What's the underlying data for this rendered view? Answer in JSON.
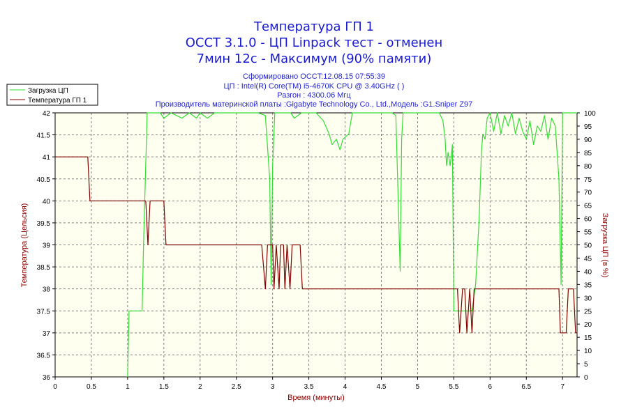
{
  "header": {
    "title_lines": [
      "Температура ГП 1",
      "OCCT 3.1.0 - ЦП Linpack тест - отменен",
      "7мин 12с - Максимум (90% памяти)"
    ],
    "info_lines": [
      "Сформировано OCCT:12.08.15 07:55:39",
      "ЦП : Intel(R) Core(TM) i5-4670K CPU @ 3.40GHz (  )",
      "Разгон : 4300.06 Мгц",
      "Производитель материнской платы :Gigabyte Technology Co., Ltd.,Модель :G1.Sniper Z97"
    ]
  },
  "chart_data": {
    "type": "line",
    "xlabel": "Время (минуты)",
    "ylabel_left": "Температура (Цельсия)",
    "ylabel_right": "Загрузка ЦП (в %)",
    "xlim": [
      0,
      7.2
    ],
    "ylim_left": [
      36,
      42
    ],
    "ylim_right": [
      0,
      100
    ],
    "x_ticks": [
      "0",
      "0.5",
      "1",
      "1.5",
      "2",
      "2.5",
      "3",
      "3.5",
      "4",
      "4.5",
      "5",
      "5.5",
      "6",
      "6.5",
      "7"
    ],
    "y_left_ticks": [
      "36",
      "36.5",
      "37",
      "37.5",
      "38",
      "38.5",
      "39",
      "39.5",
      "40",
      "40.5",
      "41",
      "41.5",
      "42"
    ],
    "y_right_ticks": [
      "0",
      "5",
      "10",
      "15",
      "20",
      "25",
      "30",
      "35",
      "40",
      "45",
      "50",
      "55",
      "60",
      "65",
      "70",
      "75",
      "80",
      "85",
      "90",
      "95",
      "100"
    ],
    "grid": true,
    "legend_position": "top-left",
    "background_color": "#fffff0",
    "series": [
      {
        "name": "Загрузка ЦП",
        "axis": "right",
        "color": "#33dd33",
        "points": [
          [
            1.0,
            0
          ],
          [
            1.02,
            25
          ],
          [
            1.2,
            25
          ],
          [
            1.22,
            50
          ],
          [
            1.27,
            100
          ],
          [
            1.45,
            100
          ],
          [
            1.5,
            98
          ],
          [
            1.6,
            100
          ],
          [
            1.75,
            98
          ],
          [
            1.85,
            100
          ],
          [
            1.95,
            98
          ],
          [
            2.0,
            100
          ],
          [
            2.1,
            98
          ],
          [
            2.2,
            100
          ],
          [
            2.5,
            100
          ],
          [
            2.8,
            100
          ],
          [
            2.9,
            99
          ],
          [
            2.96,
            75
          ],
          [
            2.98,
            35
          ],
          [
            3.0,
            80
          ],
          [
            3.03,
            100
          ],
          [
            3.25,
            100
          ],
          [
            3.3,
            98
          ],
          [
            3.4,
            100
          ],
          [
            3.6,
            100
          ],
          [
            3.7,
            97
          ],
          [
            3.78,
            92
          ],
          [
            3.82,
            88
          ],
          [
            3.88,
            90
          ],
          [
            3.93,
            86
          ],
          [
            3.97,
            90
          ],
          [
            4.05,
            92
          ],
          [
            4.1,
            100
          ],
          [
            4.5,
            100
          ],
          [
            4.65,
            100
          ],
          [
            4.7,
            99
          ],
          [
            4.74,
            60
          ],
          [
            4.76,
            40
          ],
          [
            4.78,
            90
          ],
          [
            4.8,
            100
          ],
          [
            5.3,
            100
          ],
          [
            5.35,
            97
          ],
          [
            5.38,
            90
          ],
          [
            5.4,
            80
          ],
          [
            5.42,
            85
          ],
          [
            5.45,
            80
          ],
          [
            5.48,
            88
          ],
          [
            5.5,
            25
          ],
          [
            5.75,
            25
          ],
          [
            5.8,
            35
          ],
          [
            5.85,
            60
          ],
          [
            5.88,
            85
          ],
          [
            5.9,
            92
          ],
          [
            5.93,
            90
          ],
          [
            5.96,
            98
          ],
          [
            6.0,
            100
          ],
          [
            6.05,
            93
          ],
          [
            6.1,
            100
          ],
          [
            6.15,
            92
          ],
          [
            6.2,
            99
          ],
          [
            6.25,
            95
          ],
          [
            6.3,
            100
          ],
          [
            6.35,
            92
          ],
          [
            6.4,
            98
          ],
          [
            6.45,
            93
          ],
          [
            6.5,
            90
          ],
          [
            6.55,
            97
          ],
          [
            6.6,
            88
          ],
          [
            6.65,
            95
          ],
          [
            6.7,
            93
          ],
          [
            6.75,
            99
          ],
          [
            6.8,
            90
          ],
          [
            6.85,
            98
          ],
          [
            6.9,
            95
          ],
          [
            6.95,
            75
          ],
          [
            6.98,
            35
          ],
          [
            7.0,
            100
          ],
          [
            7.2,
            100
          ]
        ]
      },
      {
        "name": "Температура ГП 1",
        "axis": "left",
        "color": "#800000",
        "points": [
          [
            0,
            41
          ],
          [
            0.45,
            41
          ],
          [
            0.48,
            40
          ],
          [
            1.25,
            40
          ],
          [
            1.28,
            39
          ],
          [
            1.31,
            40
          ],
          [
            1.5,
            40
          ],
          [
            1.53,
            39
          ],
          [
            2.85,
            39
          ],
          [
            2.9,
            38
          ],
          [
            2.93,
            39
          ],
          [
            3.0,
            39
          ],
          [
            3.02,
            38
          ],
          [
            3.05,
            39
          ],
          [
            3.09,
            38
          ],
          [
            3.11,
            39
          ],
          [
            3.15,
            39
          ],
          [
            3.17,
            38
          ],
          [
            3.2,
            39
          ],
          [
            3.24,
            38
          ],
          [
            3.27,
            39
          ],
          [
            3.38,
            39
          ],
          [
            3.41,
            38
          ],
          [
            3.45,
            38
          ],
          [
            5.55,
            38
          ],
          [
            5.58,
            37
          ],
          [
            5.62,
            38
          ],
          [
            5.65,
            38
          ],
          [
            5.68,
            37
          ],
          [
            5.72,
            38
          ],
          [
            5.75,
            37
          ],
          [
            5.78,
            38
          ],
          [
            6.95,
            38
          ],
          [
            6.97,
            37
          ],
          [
            7.05,
            37
          ],
          [
            7.08,
            38
          ],
          [
            7.15,
            38
          ],
          [
            7.18,
            37
          ],
          [
            7.2,
            37
          ]
        ]
      }
    ]
  }
}
